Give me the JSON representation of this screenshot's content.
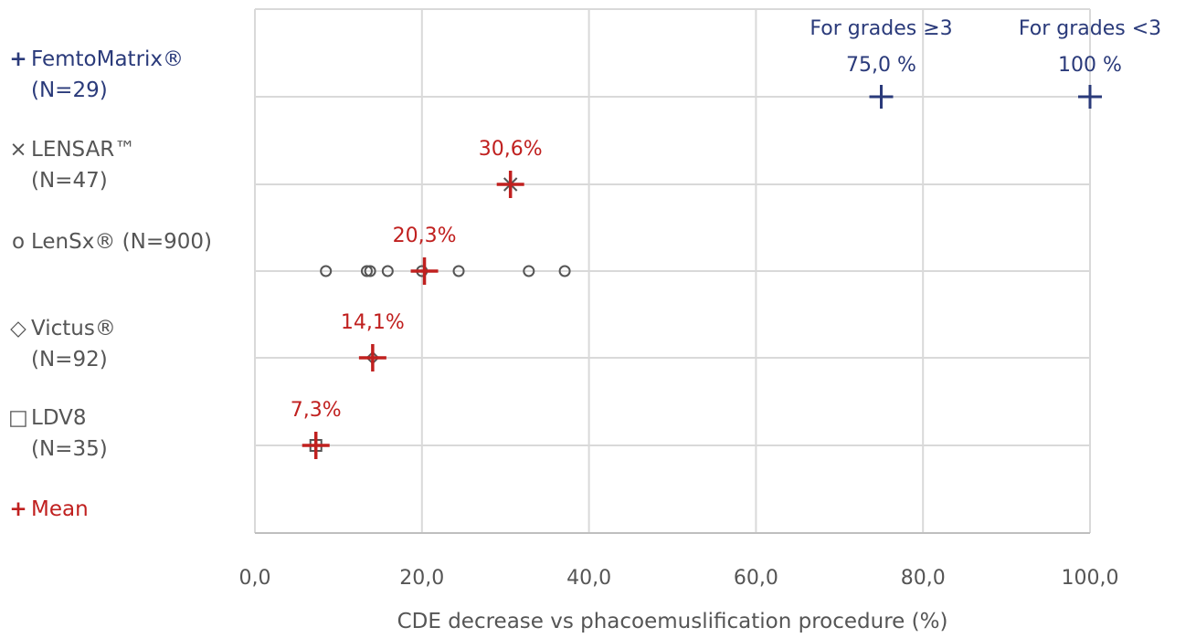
{
  "chart_data": {
    "type": "scatter",
    "xlabel": "CDE decrease vs phacoemuslification procedure (%)",
    "xlim": [
      0,
      100
    ],
    "x_ticks": [
      "0,0",
      "20,0",
      "40,0",
      "60,0",
      "80,0",
      "100,0"
    ],
    "x_tick_values": [
      0,
      20,
      40,
      60,
      80,
      100
    ],
    "grid": true,
    "legend_position": "left",
    "rows": [
      {
        "label_line1": "FemtoMatrix®",
        "label_line2": "(N=29)",
        "marker": "+",
        "color": "#2a3a7a"
      },
      {
        "label_line1": "LENSAR™",
        "label_line2": "(N=47)",
        "marker": "×",
        "color": "#555555"
      },
      {
        "label_line1": "LenSx® (N=900)",
        "label_line2": "",
        "marker": "o",
        "color": "#555555"
      },
      {
        "label_line1": "Victus®",
        "label_line2": "(N=92)",
        "marker": "◇",
        "color": "#555555"
      },
      {
        "label_line1": "LDV8",
        "label_line2": "(N=35)",
        "marker": "□",
        "color": "#555555"
      }
    ],
    "mean_label": "Mean",
    "mean_color": "#c0201f",
    "series": [
      {
        "name": "FemtoMatrix®",
        "row": 0,
        "points": [
          75.0,
          100.0
        ],
        "annotations": [
          {
            "x": 75.0,
            "line1": "For grades ≥3",
            "line2": "75,0 %"
          },
          {
            "x": 100.0,
            "line1": "For grades <3",
            "line2": "100 %"
          }
        ]
      },
      {
        "name": "LENSAR™",
        "row": 1,
        "points": [
          30.6
        ]
      },
      {
        "name": "LenSx®",
        "row": 2,
        "points": [
          8.5,
          13.4,
          13.8,
          15.9,
          20.0,
          24.4,
          32.8,
          37.1
        ]
      },
      {
        "name": "Victus®",
        "row": 3,
        "points": [
          14.1
        ]
      },
      {
        "name": "LDV8",
        "row": 4,
        "points": [
          7.3
        ]
      }
    ],
    "means": [
      {
        "row": 1,
        "x": 30.6,
        "label": "30,6%"
      },
      {
        "row": 2,
        "x": 20.3,
        "label": "20,3%"
      },
      {
        "row": 3,
        "x": 14.1,
        "label": "14,1%"
      },
      {
        "row": 4,
        "x": 7.3,
        "label": "7,3%"
      }
    ]
  }
}
